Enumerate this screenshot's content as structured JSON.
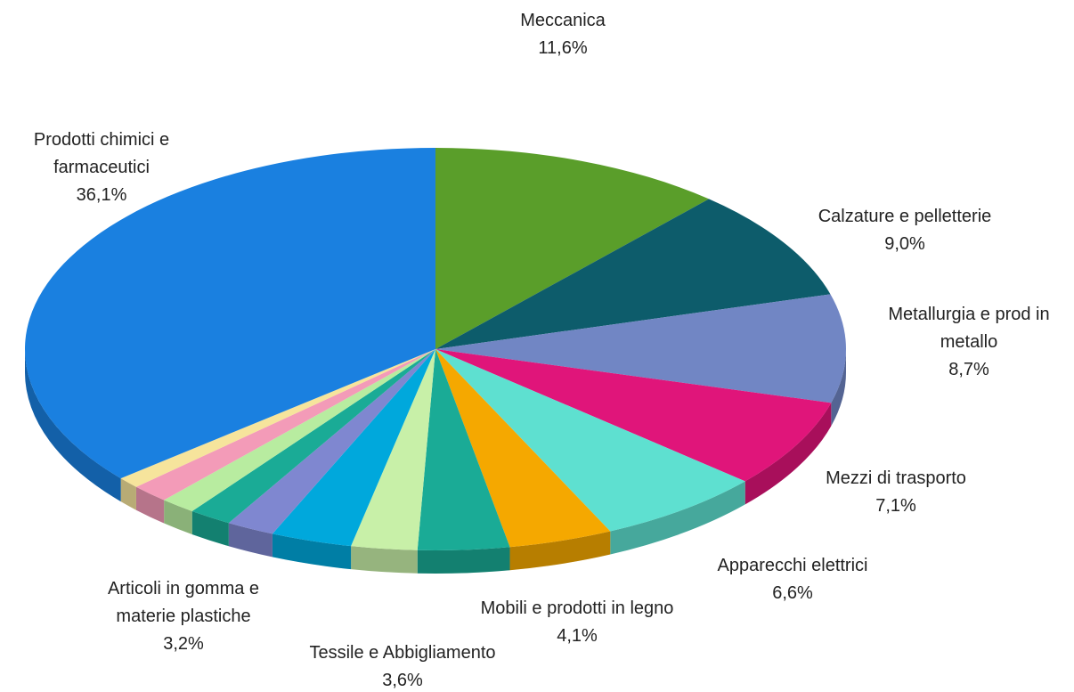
{
  "chart_data": {
    "type": "pie",
    "categories": [
      "Meccanica",
      "Calzature e pelletterie",
      "Metallurgia e prod in metallo",
      "Mezzi di trasporto",
      "Apparecchi elettrici",
      "Mobili e prodotti in legno",
      "Tessile e Abbigliamento",
      null,
      "Articoli in gomma e materie plastiche",
      null,
      null,
      null,
      null,
      null,
      "Prodotti chimici e farmaceutici"
    ],
    "values": [
      11.6,
      9.0,
      8.7,
      7.1,
      6.6,
      4.1,
      3.6,
      2.6,
      3.2,
      1.9,
      1.7,
      1.4,
      1.5,
      0.9,
      36.1
    ],
    "value_labels": [
      "11,6%",
      "9,0%",
      "8,7%",
      "7,1%",
      "6,6%",
      "4,1%",
      "3,6%",
      null,
      "3,2%",
      null,
      null,
      null,
      null,
      null,
      "36,1%"
    ],
    "colors": [
      "#5a9e2a",
      "#0d5c6b",
      "#7186c4",
      "#e0157a",
      "#5ee0d0",
      "#f5a800",
      "#1aab96",
      "#c8f0a8",
      "#00a8dc",
      "#7f87d0",
      "#1aab96",
      "#b8eca0",
      "#f39bb8",
      "#f6e49c",
      "#1a80e0"
    ]
  }
}
